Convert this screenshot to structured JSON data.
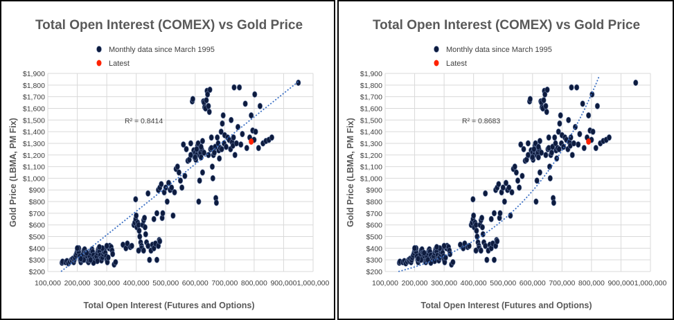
{
  "chart_data": [
    {
      "type": "scatter",
      "title": "Total Open Interest (COMEX) vs Gold Price",
      "xlabel": "Total Open Interest (Futures and Options)",
      "ylabel": "Gold Price (LBMA, PM Fix)",
      "xlim": [
        100000,
        1000000
      ],
      "ylim": [
        200,
        1900
      ],
      "x_ticks": [
        "100,000",
        "200,000",
        "300,000",
        "400,000",
        "500,000",
        "600,000",
        "700,000",
        "800,000",
        "900,000",
        "1,000,000"
      ],
      "y_ticks": [
        "$200",
        "$300",
        "$400",
        "$500",
        "$600",
        "$700",
        "$800",
        "$900",
        "$1,000",
        "$1,100",
        "$1,200",
        "$1,300",
        "$1,400",
        "$1,500",
        "$1,600",
        "$1,700",
        "$1,800",
        "$1,900"
      ],
      "legend": [
        "Monthly data since March 1995",
        "Latest"
      ],
      "annotation": "R² = 0.8414",
      "trend": "linear",
      "latest": [
        790000,
        1315
      ]
    },
    {
      "type": "scatter",
      "title": "Total Open Interest (COMEX) vs Gold Price",
      "xlabel": "Total Open Interest (Futures and Options)",
      "ylabel": "Gold Price (LBMA, PM Fix)",
      "xlim": [
        100000,
        1000000
      ],
      "ylim": [
        200,
        1900
      ],
      "x_ticks": [
        "100,000",
        "200,000",
        "300,000",
        "400,000",
        "500,000",
        "600,000",
        "700,000",
        "800,000",
        "900,000",
        "1,000,000"
      ],
      "y_ticks": [
        "$200",
        "$300",
        "$400",
        "$500",
        "$600",
        "$700",
        "$800",
        "$900",
        "$1,000",
        "$1,100",
        "$1,200",
        "$1,300",
        "$1,400",
        "$1,500",
        "$1,600",
        "$1,700",
        "$1,800",
        "$1,900"
      ],
      "legend": [
        "Monthly data since March 1995",
        "Latest"
      ],
      "annotation": "R² = 0.8683",
      "trend": "exponential",
      "latest": [
        790000,
        1315
      ]
    }
  ],
  "points": [
    [
      148000,
      275
    ],
    [
      150000,
      285
    ],
    [
      160000,
      280
    ],
    [
      165000,
      290
    ],
    [
      170000,
      270
    ],
    [
      175000,
      285
    ],
    [
      180000,
      300
    ],
    [
      182000,
      290
    ],
    [
      185000,
      310
    ],
    [
      188000,
      280
    ],
    [
      190000,
      300
    ],
    [
      192000,
      320
    ],
    [
      195000,
      340
    ],
    [
      198000,
      360
    ],
    [
      200000,
      380
    ],
    [
      202000,
      390
    ],
    [
      205000,
      370
    ],
    [
      208000,
      330
    ],
    [
      210000,
      300
    ],
    [
      212000,
      280
    ],
    [
      215000,
      300
    ],
    [
      218000,
      320
    ],
    [
      220000,
      350
    ],
    [
      222000,
      380
    ],
    [
      225000,
      390
    ],
    [
      228000,
      360
    ],
    [
      230000,
      330
    ],
    [
      232000,
      310
    ],
    [
      235000,
      290
    ],
    [
      238000,
      280
    ],
    [
      240000,
      300
    ],
    [
      242000,
      330
    ],
    [
      245000,
      360
    ],
    [
      248000,
      380
    ],
    [
      250000,
      390
    ],
    [
      252000,
      370
    ],
    [
      255000,
      340
    ],
    [
      258000,
      310
    ],
    [
      260000,
      290
    ],
    [
      262000,
      300
    ],
    [
      265000,
      330
    ],
    [
      268000,
      360
    ],
    [
      270000,
      380
    ],
    [
      272000,
      395
    ],
    [
      275000,
      370
    ],
    [
      278000,
      340
    ],
    [
      280000,
      310
    ],
    [
      282000,
      295
    ],
    [
      285000,
      320
    ],
    [
      288000,
      350
    ],
    [
      290000,
      370
    ],
    [
      292000,
      390
    ],
    [
      295000,
      360
    ],
    [
      298000,
      330
    ],
    [
      300000,
      300
    ],
    [
      302000,
      280
    ],
    [
      305000,
      320
    ],
    [
      308000,
      400
    ],
    [
      310000,
      420
    ],
    [
      315000,
      410
    ],
    [
      318000,
      380
    ],
    [
      320000,
      350
    ],
    [
      325000,
      260
    ],
    [
      330000,
      280
    ],
    [
      300000,
      420
    ],
    [
      285000,
      400
    ],
    [
      275000,
      410
    ],
    [
      268000,
      290
    ],
    [
      255000,
      275
    ],
    [
      245000,
      300
    ],
    [
      232000,
      360
    ],
    [
      222000,
      300
    ],
    [
      212000,
      310
    ],
    [
      205000,
      400
    ],
    [
      200000,
      400
    ],
    [
      355000,
      430
    ],
    [
      365000,
      400
    ],
    [
      370000,
      440
    ],
    [
      380000,
      410
    ],
    [
      385000,
      420
    ],
    [
      392000,
      600
    ],
    [
      395000,
      620
    ],
    [
      398000,
      650
    ],
    [
      400000,
      680
    ],
    [
      402000,
      580
    ],
    [
      405000,
      620
    ],
    [
      408000,
      600
    ],
    [
      410000,
      550
    ],
    [
      412000,
      500
    ],
    [
      415000,
      450
    ],
    [
      418000,
      420
    ],
    [
      420000,
      400
    ],
    [
      422000,
      600
    ],
    [
      425000,
      640
    ],
    [
      428000,
      660
    ],
    [
      430000,
      580
    ],
    [
      432000,
      520
    ],
    [
      435000,
      450
    ],
    [
      440000,
      420
    ],
    [
      445000,
      300
    ],
    [
      450000,
      380
    ],
    [
      455000,
      430
    ],
    [
      460000,
      400
    ],
    [
      465000,
      440
    ],
    [
      470000,
      300
    ],
    [
      475000,
      420
    ],
    [
      478000,
      470
    ],
    [
      480000,
      460
    ],
    [
      440000,
      870
    ],
    [
      398000,
      820
    ],
    [
      418000,
      400
    ],
    [
      408000,
      380
    ],
    [
      425000,
      380
    ],
    [
      460000,
      650
    ],
    [
      470000,
      700
    ],
    [
      475000,
      900
    ],
    [
      480000,
      920
    ],
    [
      485000,
      950
    ],
    [
      488000,
      660
    ],
    [
      490000,
      700
    ],
    [
      495000,
      880
    ],
    [
      500000,
      920
    ],
    [
      505000,
      800
    ],
    [
      510000,
      960
    ],
    [
      515000,
      900
    ],
    [
      520000,
      920
    ],
    [
      525000,
      680
    ],
    [
      530000,
      880
    ],
    [
      535000,
      1080
    ],
    [
      540000,
      1100
    ],
    [
      545000,
      1050
    ],
    [
      550000,
      980
    ],
    [
      555000,
      920
    ],
    [
      560000,
      1290
    ],
    [
      565000,
      1020
    ],
    [
      570000,
      1250
    ],
    [
      575000,
      1150
    ],
    [
      580000,
      1160
    ],
    [
      585000,
      1300
    ],
    [
      590000,
      1660
    ],
    [
      592000,
      1680
    ],
    [
      595000,
      1240
    ],
    [
      598000,
      1180
    ],
    [
      600000,
      1220
    ],
    [
      602000,
      1160
    ],
    [
      605000,
      1200
    ],
    [
      608000,
      1280
    ],
    [
      610000,
      1300
    ],
    [
      612000,
      1250
    ],
    [
      615000,
      1200
    ],
    [
      618000,
      1220
    ],
    [
      620000,
      1180
    ],
    [
      622000,
      1250
    ],
    [
      625000,
      1320
    ],
    [
      628000,
      1660
    ],
    [
      630000,
      1650
    ],
    [
      632000,
      1610
    ],
    [
      635000,
      1600
    ],
    [
      638000,
      1670
    ],
    [
      640000,
      1750
    ],
    [
      642000,
      1720
    ],
    [
      645000,
      1620
    ],
    [
      648000,
      1570
    ],
    [
      650000,
      1760
    ],
    [
      652000,
      1250
    ],
    [
      655000,
      1260
    ],
    [
      658000,
      1100
    ],
    [
      660000,
      1000
    ],
    [
      662000,
      1200
    ],
    [
      665000,
      1220
    ],
    [
      668000,
      1270
    ],
    [
      670000,
      830
    ],
    [
      672000,
      790
    ],
    [
      675000,
      1350
    ],
    [
      678000,
      1300
    ],
    [
      680000,
      1240
    ],
    [
      682000,
      1170
    ],
    [
      685000,
      1260
    ],
    [
      688000,
      1400
    ],
    [
      690000,
      1250
    ],
    [
      692000,
      1470
    ],
    [
      695000,
      1540
    ],
    [
      698000,
      1300
    ],
    [
      700000,
      1370
    ],
    [
      705000,
      1270
    ],
    [
      710000,
      1350
    ],
    [
      715000,
      1330
    ],
    [
      720000,
      1250
    ],
    [
      722000,
      1500
    ],
    [
      725000,
      1310
    ],
    [
      728000,
      1280
    ],
    [
      730000,
      1350
    ],
    [
      732000,
      1780
    ],
    [
      735000,
      1200
    ],
    [
      740000,
      1300
    ],
    [
      745000,
      1440
    ],
    [
      750000,
      1780
    ],
    [
      755000,
      1290
    ],
    [
      760000,
      1380
    ],
    [
      770000,
      1640
    ],
    [
      775000,
      1260
    ],
    [
      785000,
      1350
    ],
    [
      790000,
      1540
    ],
    [
      795000,
      1410
    ],
    [
      800000,
      1330
    ],
    [
      802000,
      1720
    ],
    [
      805000,
      1400
    ],
    [
      815000,
      1260
    ],
    [
      820000,
      1620
    ],
    [
      830000,
      1300
    ],
    [
      840000,
      1320
    ],
    [
      850000,
      1330
    ],
    [
      860000,
      1350
    ],
    [
      625000,
      1050
    ],
    [
      615000,
      980
    ],
    [
      630000,
      1220
    ],
    [
      645000,
      1200
    ],
    [
      655000,
      1350
    ],
    [
      605000,
      1250
    ],
    [
      585000,
      1200
    ],
    [
      600000,
      1180
    ],
    [
      612000,
      800
    ],
    [
      620000,
      1270
    ],
    [
      950000,
      1820
    ]
  ]
}
